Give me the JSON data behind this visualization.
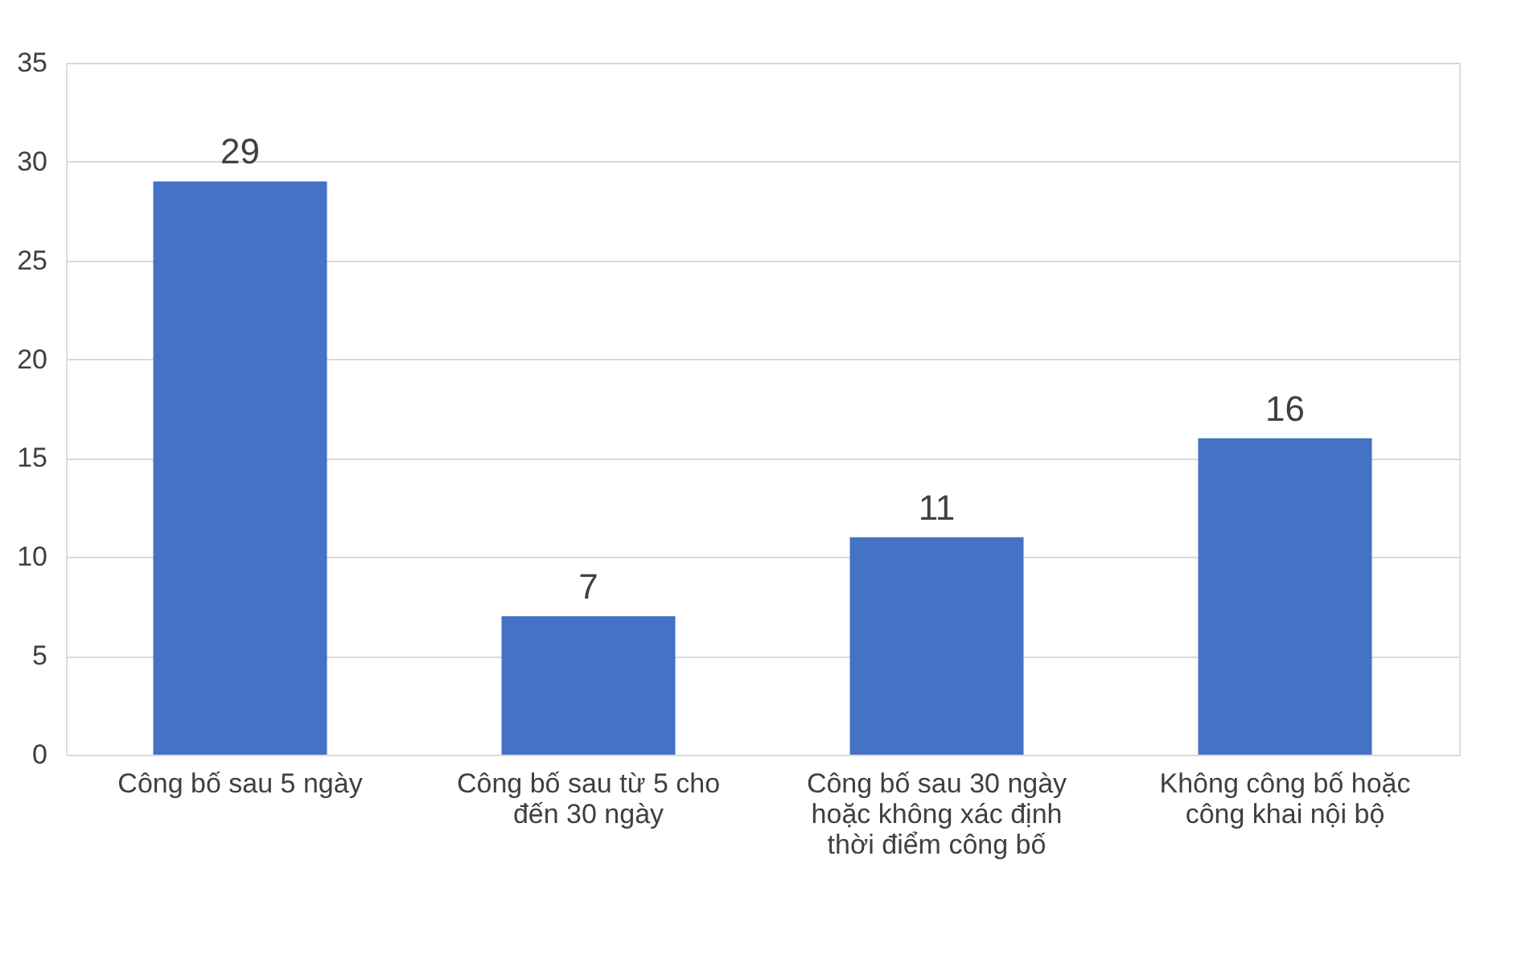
{
  "chart_data": {
    "type": "bar",
    "categories": [
      "Công bố sau 5 ngày",
      "Công bố sau từ 5 cho đến 30 ngày",
      "Công bố sau 30 ngày hoặc không xác định thời điểm công bố",
      "Không công bố hoặc công khai nội bộ"
    ],
    "values": [
      29,
      7,
      11,
      16
    ],
    "color": "#4472c4",
    "ylim": [
      0,
      35
    ],
    "yticks": [
      0,
      5,
      10,
      15,
      20,
      25,
      30,
      35
    ],
    "grid": "y",
    "data_labels": true
  }
}
